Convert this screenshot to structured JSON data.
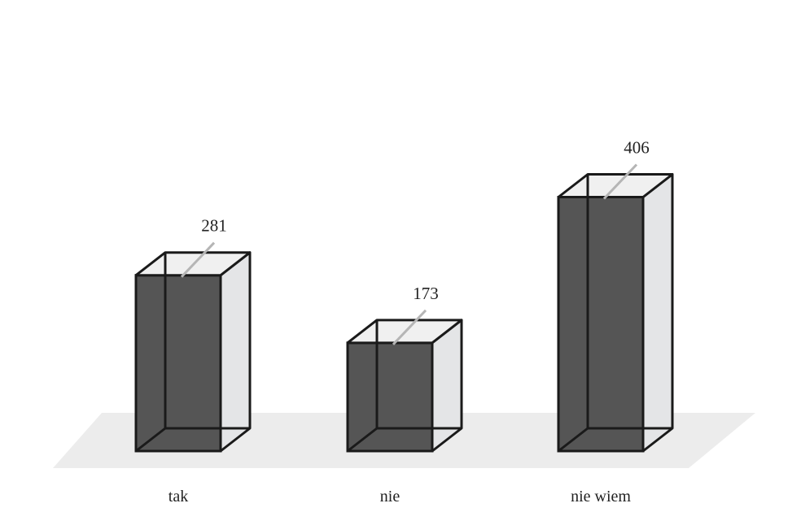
{
  "chart_data": {
    "type": "bar",
    "categories": [
      "tak",
      "nie",
      "nie wiem"
    ],
    "values": [
      281,
      173,
      406
    ],
    "title": "",
    "xlabel": "",
    "ylabel": "",
    "grid": false,
    "data_labels": [
      "281",
      "173",
      "406"
    ]
  },
  "colors": {
    "bar_front": "#555555",
    "bar_side": "#e4e5e7",
    "bar_top": "#f0f0f0",
    "bar_edge": "#1a1a1a",
    "floor": "#ececec",
    "leader_line": "#b5b5b5"
  }
}
